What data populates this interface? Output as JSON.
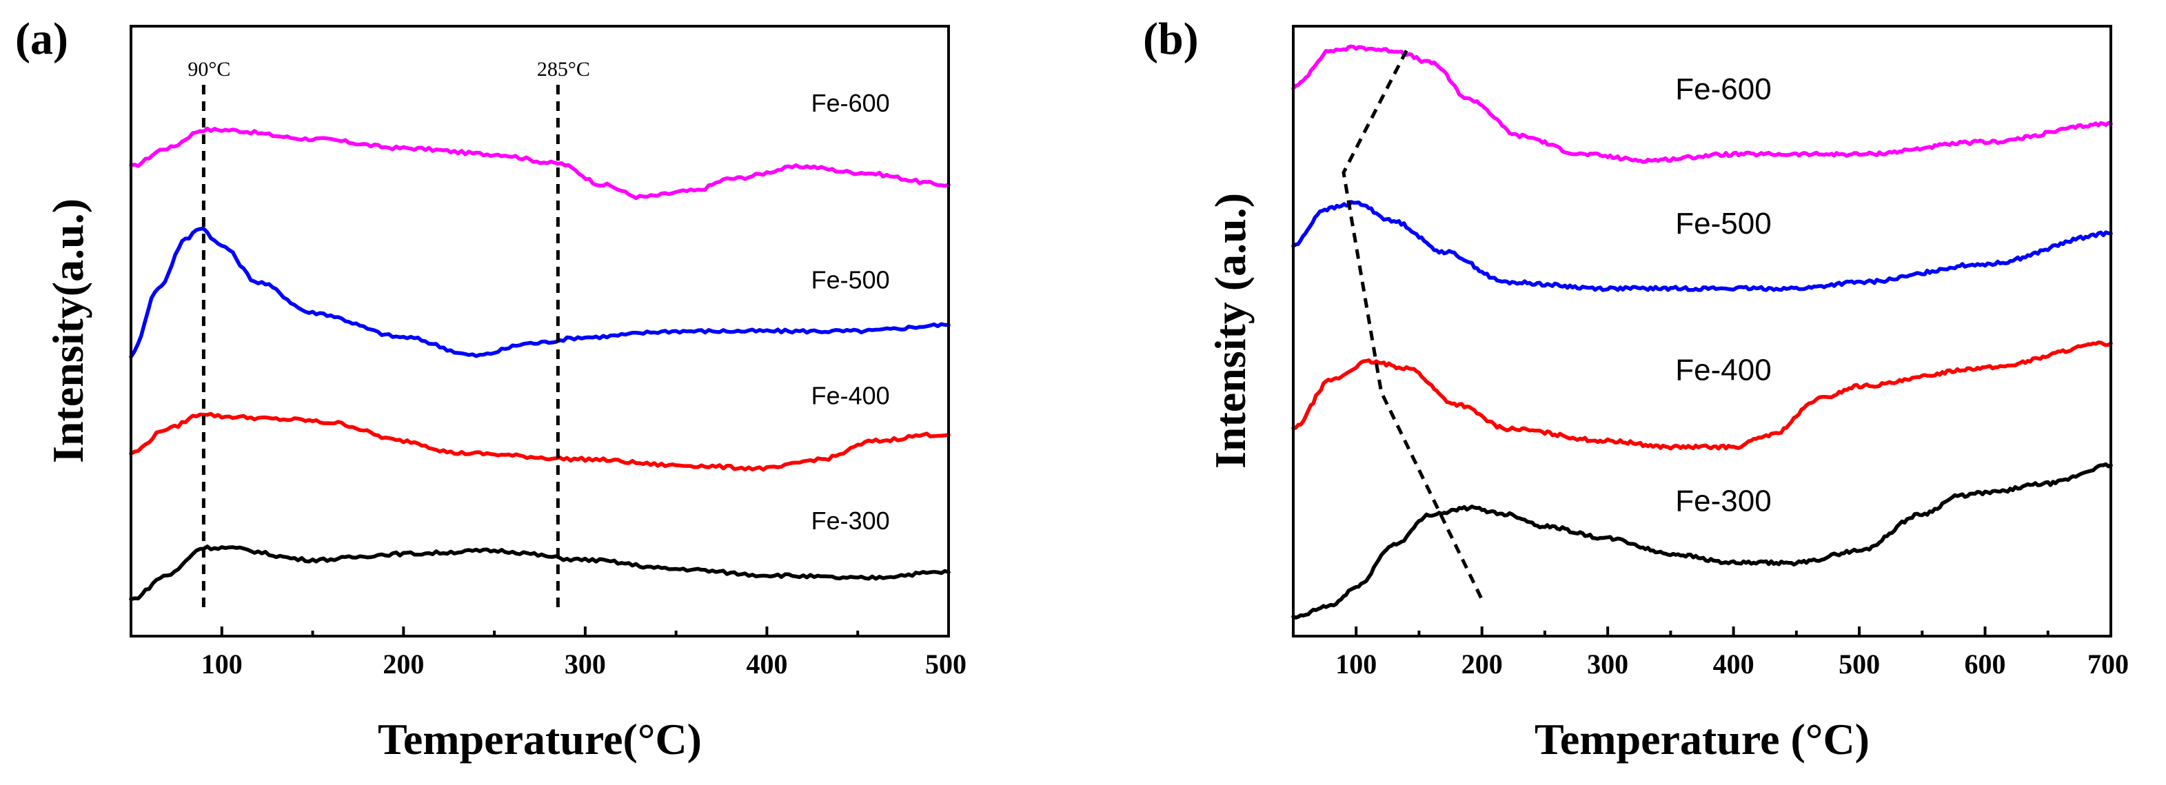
{
  "chart_data": [
    {
      "type": "line",
      "panel_label": "(a)",
      "xlabel": "Temperature(°C)",
      "ylabel": "Intensity(a.u.)",
      "xlim": [
        50,
        500
      ],
      "ylim": [
        0,
        100
      ],
      "x_ticks": [
        100,
        200,
        300,
        400,
        500
      ],
      "x_tick_labels": [
        "100",
        "200",
        "300",
        "400",
        "500"
      ],
      "series": [
        {
          "name": "Fe-600",
          "color": "#ff00ff",
          "points": [
            [
              50,
              77
            ],
            [
              70,
              80
            ],
            [
              90,
              83
            ],
            [
              100,
              83
            ],
            [
              150,
              81.5
            ],
            [
              200,
              80
            ],
            [
              250,
              79
            ],
            [
              285,
              77.5
            ],
            [
              310,
              74
            ],
            [
              330,
              72
            ],
            [
              360,
              73
            ],
            [
              380,
              75
            ],
            [
              420,
              77
            ],
            [
              450,
              76
            ],
            [
              500,
              74
            ]
          ]
        },
        {
          "name": "Fe-500",
          "color": "#0000ff",
          "points": [
            [
              50,
              46
            ],
            [
              65,
              57
            ],
            [
              80,
              65
            ],
            [
              88,
              67
            ],
            [
              100,
              64
            ],
            [
              120,
              58
            ],
            [
              150,
              53
            ],
            [
              200,
              49
            ],
            [
              240,
              46
            ],
            [
              270,
              48
            ],
            [
              300,
              49
            ],
            [
              350,
              50
            ],
            [
              400,
              50
            ],
            [
              450,
              50
            ],
            [
              500,
              51
            ]
          ]
        },
        {
          "name": "Fe-400",
          "color": "#ff0000",
          "points": [
            [
              50,
              30
            ],
            [
              70,
              34
            ],
            [
              90,
              36.5
            ],
            [
              100,
              36
            ],
            [
              140,
              35.5
            ],
            [
              160,
              35
            ],
            [
              200,
              32
            ],
            [
              230,
              30
            ],
            [
              300,
              29
            ],
            [
              350,
              28
            ],
            [
              400,
              27.5
            ],
            [
              430,
              29
            ],
            [
              460,
              32
            ],
            [
              490,
              33
            ],
            [
              500,
              33
            ]
          ]
        },
        {
          "name": "Fe-300",
          "color": "#000000",
          "points": [
            [
              50,
              6
            ],
            [
              70,
              10
            ],
            [
              90,
              14.5
            ],
            [
              100,
              14.5
            ],
            [
              150,
              12.5
            ],
            [
              200,
              13.5
            ],
            [
              250,
              14
            ],
            [
              300,
              12.5
            ],
            [
              350,
              11
            ],
            [
              400,
              10
            ],
            [
              450,
              9.5
            ],
            [
              500,
              10.5
            ]
          ]
        }
      ],
      "series_labels": [
        {
          "text": "Fe-600",
          "x": 446,
          "y": 86
        },
        {
          "text": "Fe-500",
          "x": 446,
          "y": 57
        },
        {
          "text": "Fe-400",
          "x": 446,
          "y": 38
        },
        {
          "text": "Fe-300",
          "x": 446,
          "y": 17.5
        }
      ],
      "reference_lines": [
        {
          "x": 90,
          "label": "90°C"
        },
        {
          "x": 285,
          "label": "285°C"
        }
      ]
    },
    {
      "type": "line",
      "panel_label": "(b)",
      "xlabel": "Temperature (°C)",
      "ylabel": "Intensity (a.u.)",
      "xlim": [
        50,
        700
      ],
      "ylim": [
        0,
        100
      ],
      "x_ticks": [
        100,
        200,
        300,
        400,
        500,
        600,
        700
      ],
      "x_tick_labels": [
        "100",
        "200",
        "300",
        "400",
        "500",
        "600",
        "700"
      ],
      "series": [
        {
          "name": "Fe-600",
          "color": "#ff00ff",
          "points": [
            [
              50,
              90
            ],
            [
              80,
              96
            ],
            [
              100,
              96.5
            ],
            [
              130,
              96
            ],
            [
              160,
              94
            ],
            [
              190,
              88
            ],
            [
              230,
              82
            ],
            [
              280,
              79
            ],
            [
              330,
              78
            ],
            [
              400,
              79
            ],
            [
              500,
              79
            ],
            [
              600,
              81
            ],
            [
              700,
              84
            ]
          ]
        },
        {
          "name": "Fe-500",
          "color": "#0000ff",
          "points": [
            [
              50,
              64
            ],
            [
              75,
              70
            ],
            [
              100,
              71
            ],
            [
              130,
              68
            ],
            [
              170,
              63
            ],
            [
              220,
              58
            ],
            [
              300,
              57
            ],
            [
              350,
              57
            ],
            [
              400,
              57
            ],
            [
              450,
              57
            ],
            [
              500,
              58
            ],
            [
              600,
              61
            ],
            [
              700,
              66
            ]
          ]
        },
        {
          "name": "Fe-400",
          "color": "#ff0000",
          "points": [
            [
              50,
              34
            ],
            [
              80,
              42
            ],
            [
              110,
              45
            ],
            [
              140,
              44
            ],
            [
              180,
              38
            ],
            [
              220,
              34
            ],
            [
              300,
              32
            ],
            [
              350,
              31
            ],
            [
              400,
              31
            ],
            [
              430,
              33
            ],
            [
              470,
              39
            ],
            [
              500,
              41
            ],
            [
              600,
              44
            ],
            [
              700,
              48
            ]
          ]
        },
        {
          "name": "Fe-300",
          "color": "#000000",
          "points": [
            [
              50,
              3
            ],
            [
              80,
              5
            ],
            [
              100,
              8
            ],
            [
              130,
              15
            ],
            [
              160,
              20
            ],
            [
              190,
              21
            ],
            [
              220,
              20
            ],
            [
              250,
              18
            ],
            [
              300,
              16
            ],
            [
              350,
              13.5
            ],
            [
              400,
              12
            ],
            [
              450,
              12
            ],
            [
              500,
              14
            ],
            [
              550,
              20
            ],
            [
              580,
              23
            ],
            [
              600,
              23.5
            ],
            [
              650,
              25
            ],
            [
              700,
              28
            ]
          ]
        }
      ],
      "series_labels": [
        {
          "text": "Fe-600",
          "x": 392,
          "y": 88
        },
        {
          "text": "Fe-500",
          "x": 392,
          "y": 66
        },
        {
          "text": "Fe-400",
          "x": 392,
          "y": 42
        },
        {
          "text": "Fe-300",
          "x": 392,
          "y": 20.5
        }
      ],
      "trend_line": [
        [
          140,
          96
        ],
        [
          90,
          76
        ],
        [
          120,
          40
        ],
        [
          200,
          6
        ]
      ]
    }
  ]
}
